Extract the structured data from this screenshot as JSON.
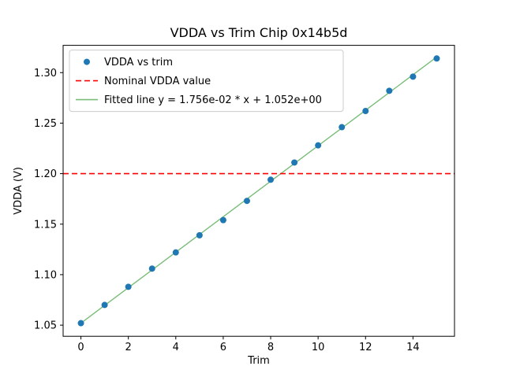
{
  "figure": {
    "background": "#ffffff"
  },
  "chart_data": {
    "type": "scatter",
    "title": "VDDA vs Trim Chip 0x14b5d",
    "xlabel": "Trim",
    "ylabel": "VDDA (V)",
    "xlim": [
      -0.75,
      15.75
    ],
    "ylim": [
      1.039,
      1.327
    ],
    "xticks": [
      0,
      2,
      4,
      6,
      8,
      10,
      12,
      14
    ],
    "yticks": [
      1.05,
      1.1,
      1.15,
      1.2,
      1.25,
      1.3
    ],
    "grid": false,
    "legend_position": "upper left",
    "series": [
      {
        "name": "VDDA vs trim",
        "kind": "scatter",
        "color": "#1f77b4",
        "x": [
          0,
          1,
          2,
          3,
          4,
          5,
          6,
          7,
          8,
          9,
          10,
          11,
          12,
          13,
          14,
          15
        ],
        "y": [
          1.052,
          1.07,
          1.088,
          1.106,
          1.122,
          1.139,
          1.154,
          1.173,
          1.194,
          1.211,
          1.228,
          1.246,
          1.262,
          1.282,
          1.296,
          1.314
        ]
      },
      {
        "name": "Nominal VDDA value",
        "kind": "hline",
        "color": "#ff0000",
        "dashed": true,
        "y": 1.2
      },
      {
        "name": "Fitted line y = 1.756e-02 * x + 1.052e+00",
        "kind": "fitline",
        "color": "#79bd79",
        "slope": 0.01756,
        "intercept": 1.052,
        "x_start": 0,
        "x_end": 15
      }
    ]
  }
}
